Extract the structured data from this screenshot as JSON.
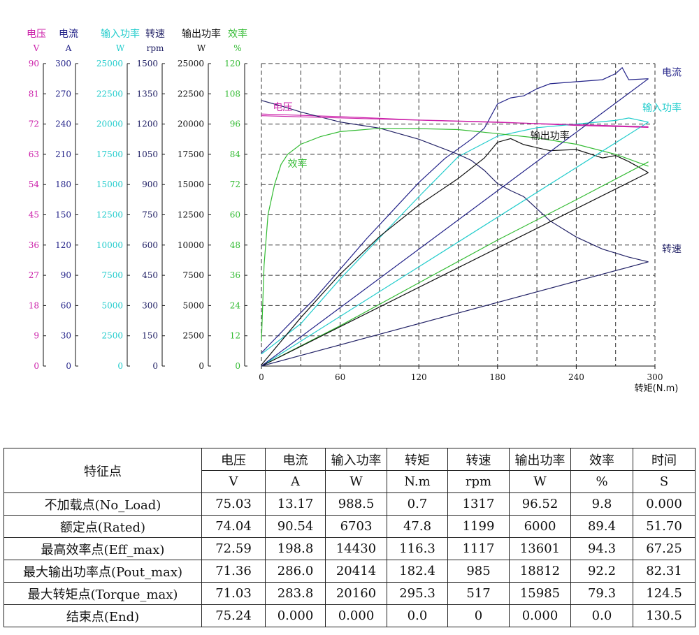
{
  "chart_data": {
    "type": "line",
    "x_axis": {
      "label": "转矩(N.m)",
      "range": [
        0,
        300
      ],
      "ticks": [
        0,
        60,
        120,
        180,
        240,
        300
      ]
    },
    "y_axes": [
      {
        "name": "电压",
        "unit": "V",
        "color": "#cc22aa",
        "range": [
          0,
          90
        ],
        "ticks": [
          0,
          9,
          18,
          27,
          36,
          45,
          54,
          63,
          72,
          81,
          90
        ]
      },
      {
        "name": "电流",
        "unit": "A",
        "color": "#222288",
        "range": [
          0,
          300
        ],
        "ticks": [
          0,
          30,
          60,
          90,
          120,
          150,
          180,
          210,
          240,
          270,
          300
        ]
      },
      {
        "name": "输入功率",
        "unit": "W",
        "color": "#22cccc",
        "range": [
          0,
          25000
        ],
        "ticks": [
          0,
          2500,
          5000,
          7500,
          10000,
          12500,
          15000,
          17500,
          20000,
          22500,
          25000
        ]
      },
      {
        "name": "转速",
        "unit": "rpm",
        "color": "#222266",
        "range": [
          0,
          1500
        ],
        "ticks": [
          0,
          150,
          300,
          450,
          600,
          750,
          900,
          1050,
          1200,
          1350,
          1500
        ]
      },
      {
        "name": "输出功率",
        "unit": "W",
        "color": "#111111",
        "range": [
          0,
          25000
        ],
        "ticks": [
          0,
          2500,
          5000,
          7500,
          10000,
          12500,
          15000,
          17500,
          20000,
          22500,
          25000
        ]
      },
      {
        "name": "效率",
        "unit": "%",
        "color": "#33bb33",
        "range": [
          0,
          120
        ],
        "ticks": [
          0,
          12,
          24,
          36,
          48,
          60,
          72,
          84,
          96,
          108,
          120
        ]
      }
    ],
    "grid": true,
    "series": [
      {
        "name": "电压",
        "axis": 0,
        "color": "#cc22aa",
        "x": [
          0,
          60,
          120,
          180,
          240,
          295
        ],
        "y": [
          75.0,
          74.2,
          73.2,
          72.6,
          71.6,
          71.0
        ]
      },
      {
        "name": "电流",
        "axis": 1,
        "color": "#222288",
        "x": [
          0,
          20,
          40,
          60,
          80,
          100,
          120,
          140,
          160,
          170,
          180,
          190,
          200,
          210,
          220,
          240,
          260,
          270,
          275,
          280,
          295
        ],
        "y": [
          13,
          40,
          66,
          96,
          126,
          154,
          182,
          206,
          225,
          236,
          260,
          266,
          268,
          275,
          280,
          282,
          284,
          290,
          296,
          284,
          285
        ]
      },
      {
        "name": "输入功率",
        "axis": 2,
        "color": "#22cccc",
        "x": [
          0,
          30,
          60,
          90,
          120,
          150,
          180,
          210,
          240,
          270,
          280,
          295
        ],
        "y": [
          988,
          3500,
          7200,
          10600,
          14000,
          17300,
          19000,
          19700,
          20000,
          20300,
          20500,
          20160
        ]
      },
      {
        "name": "转速",
        "axis": 3,
        "color": "#222266",
        "x": [
          0,
          15,
          30,
          60,
          90,
          120,
          150,
          160,
          170,
          180,
          190,
          200,
          210,
          220,
          240,
          260,
          270,
          280,
          295
        ],
        "y": [
          1317,
          1290,
          1260,
          1210,
          1180,
          1125,
          1050,
          1020,
          970,
          905,
          870,
          840,
          780,
          720,
          640,
          580,
          560,
          540,
          517
        ]
      },
      {
        "name": "输出功率",
        "axis": 4,
        "color": "#111111",
        "x": [
          0,
          30,
          60,
          90,
          120,
          150,
          170,
          180,
          190,
          200,
          220,
          240,
          260,
          270,
          280,
          290,
          295
        ],
        "y": [
          96,
          4000,
          7600,
          10700,
          13300,
          15500,
          17200,
          18500,
          18800,
          18300,
          17800,
          17900,
          17200,
          17400,
          16900,
          16300,
          15985
        ]
      },
      {
        "name": "效率",
        "axis": 5,
        "color": "#33bb33",
        "x": [
          0,
          2,
          5,
          10,
          15,
          20,
          30,
          45,
          60,
          90,
          120,
          150,
          180,
          210,
          240,
          270,
          295
        ],
        "y": [
          9.8,
          40,
          60,
          72,
          80,
          84,
          88,
          91,
          93,
          94.3,
          94.2,
          93.8,
          92.2,
          90.5,
          88,
          84,
          79.3
        ]
      },
      {
        "name": "",
        "axis": 5,
        "color": "#33bb33",
        "x": [
          0,
          60,
          120,
          180,
          240,
          295
        ],
        "y": [
          0,
          16,
          33,
          50,
          66,
          81
        ]
      },
      {
        "name": "",
        "axis": 2,
        "color": "#22cccc",
        "x": [
          0,
          295
        ],
        "y": [
          0,
          20160
        ]
      },
      {
        "name": "",
        "axis": 1,
        "color": "#222288",
        "x": [
          0,
          295
        ],
        "y": [
          0,
          285
        ]
      },
      {
        "name": "",
        "axis": 4,
        "color": "#111111",
        "x": [
          0,
          295
        ],
        "y": [
          0,
          15985
        ]
      },
      {
        "name": "",
        "axis": 3,
        "color": "#222266",
        "x": [
          0,
          295
        ],
        "y": [
          0,
          517
        ]
      },
      {
        "name": "",
        "axis": 0,
        "color": "#cc22aa",
        "x": [
          0,
          295
        ],
        "y": [
          74.5,
          71.2
        ]
      }
    ],
    "labels": [
      {
        "text": "电压",
        "series": 0,
        "color": "#cc22aa",
        "at_x": 12
      },
      {
        "text": "电流",
        "series": 1,
        "color": "#222288",
        "at_x": 300
      },
      {
        "text": "输入功率",
        "series": 2,
        "color": "#22cccc",
        "at_x": 300
      },
      {
        "text": "输出功率",
        "series": 4,
        "color": "#111111",
        "at_x": 205
      },
      {
        "text": "效率",
        "series": 5,
        "color": "#33bb33",
        "at_x": 20
      },
      {
        "text": "转速",
        "series": 3,
        "color": "#222266",
        "at_x": 300
      }
    ]
  },
  "table": {
    "header_feature": "特征点",
    "columns": [
      {
        "name": "电压",
        "unit": "V"
      },
      {
        "name": "电流",
        "unit": "A"
      },
      {
        "name": "输入功率",
        "unit": "W"
      },
      {
        "name": "转矩",
        "unit": "N.m"
      },
      {
        "name": "转速",
        "unit": "rpm"
      },
      {
        "name": "输出功率",
        "unit": "W"
      },
      {
        "name": "效率",
        "unit": "%"
      },
      {
        "name": "时间",
        "unit": "S"
      }
    ],
    "rows": [
      {
        "label": "不加载点(No_Load)",
        "values": [
          "75.03",
          "13.17",
          "988.5",
          "0.7",
          "1317",
          "96.52",
          "9.8",
          "0.000"
        ]
      },
      {
        "label": "额定点(Rated)",
        "values": [
          "74.04",
          "90.54",
          "6703",
          "47.8",
          "1199",
          "6000",
          "89.4",
          "51.70"
        ]
      },
      {
        "label": "最高效率点(Eff_max)",
        "values": [
          "72.59",
          "198.8",
          "14430",
          "116.3",
          "1117",
          "13601",
          "94.3",
          "67.25"
        ]
      },
      {
        "label": "最大输出功率点(Pout_max)",
        "values": [
          "71.36",
          "286.0",
          "20414",
          "182.4",
          "985",
          "18812",
          "92.2",
          "82.31"
        ]
      },
      {
        "label": "最大转矩点(Torque_max)",
        "values": [
          "71.03",
          "283.8",
          "20160",
          "295.3",
          "517",
          "15985",
          "79.3",
          "124.5"
        ]
      },
      {
        "label": "结束点(End)",
        "values": [
          "75.24",
          "0.000",
          "0.000",
          "0.0",
          "0",
          "0.000",
          "0.0",
          "130.5"
        ]
      }
    ]
  }
}
